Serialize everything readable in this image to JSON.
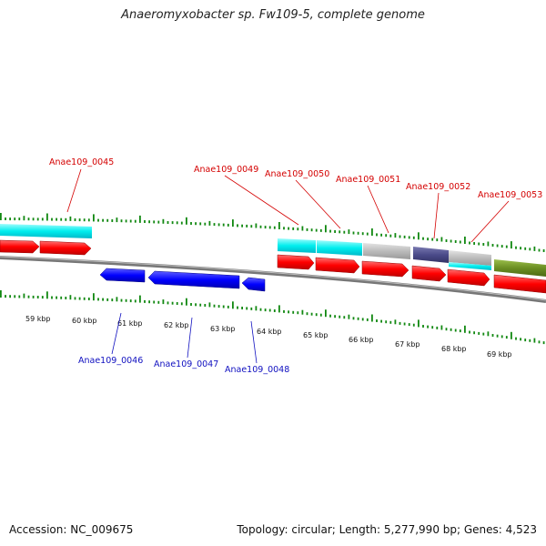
{
  "title": "Anaeromyxobacter sp. Fw109-5, complete genome",
  "footer": {
    "accession": "Accession: NC_009675",
    "summary": "Topology: circular; Length: 5,277,990 bp; Genes: 4,523"
  },
  "colors": {
    "forward_cds": "#ff0000",
    "reverse_cds": "#0000ff",
    "tick": "#118811",
    "backbone": "#777777",
    "label_forward": "#d40000",
    "label_reverse": "#1010c0",
    "cyan": "#00eeee",
    "gray": "#bbbbbb",
    "slate": "#4b4b8a",
    "olive": "#6b8e23"
  },
  "scale_labels": [
    "59 kbp",
    "60 kbp",
    "61 kbp",
    "62 kbp",
    "63 kbp",
    "64 kbp",
    "65 kbp",
    "66 kbp",
    "67 kbp",
    "68 kbp",
    "69 kbp"
  ],
  "forward_gene_labels": [
    "Anae109_0045",
    "Anae109_0049",
    "Anae109_0050",
    "Anae109_0051",
    "Anae109_0052",
    "Anae109_0053"
  ],
  "reverse_gene_labels": [
    "Anae109_0046",
    "Anae109_0047",
    "Anae109_0048"
  ]
}
